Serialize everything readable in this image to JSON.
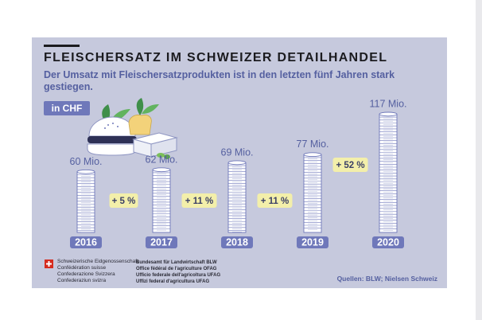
{
  "title": "FLEISCHERSATZ IM SCHWEIZER DETAILHANDEL",
  "subtitle": "Der Umsatz mit Fleischersatzprodukten ist in den letzten fünf Jahren stark gestiegen.",
  "unit_badge": "in CHF",
  "colors": {
    "panel": "#c6c9dd",
    "accent": "#6f78ba",
    "growth_badge": "#f3efaa",
    "text_blue": "#5560a0",
    "coin_fill": "#ffffff"
  },
  "chart_data": {
    "type": "bar",
    "title": "FLEISCHERSATZ IM SCHWEIZER DETAILHANDEL",
    "unit": "Mio. CHF",
    "categories": [
      "2016",
      "2017",
      "2018",
      "2019",
      "2020"
    ],
    "values": [
      60,
      62,
      69,
      77,
      117
    ],
    "value_labels": [
      "60 Mio.",
      "62 Mio.",
      "69 Mio.",
      "77 Mio.",
      "117 Mio."
    ],
    "growth_labels": [
      "+ 5 %",
      "+ 11 %",
      "+ 11 %",
      "+ 52 %"
    ],
    "xlabel": "",
    "ylabel": "",
    "ylim": [
      0,
      120
    ]
  },
  "footer": {
    "confed_lines": [
      "Schweizerische Eidgenossenschaft",
      "Confédération suisse",
      "Confederazione Svizzera",
      "Confederaziun svizra"
    ],
    "office_lines": [
      "Bundesamt für Landwirtschaft BLW",
      "Office fédéral de l'agriculture OFAG",
      "Ufficio federale dell'agricoltura UFAG",
      "Uffizi federal d'agricultura UFAG"
    ],
    "source": "Quellen: BLW; Nielsen Schweiz"
  }
}
